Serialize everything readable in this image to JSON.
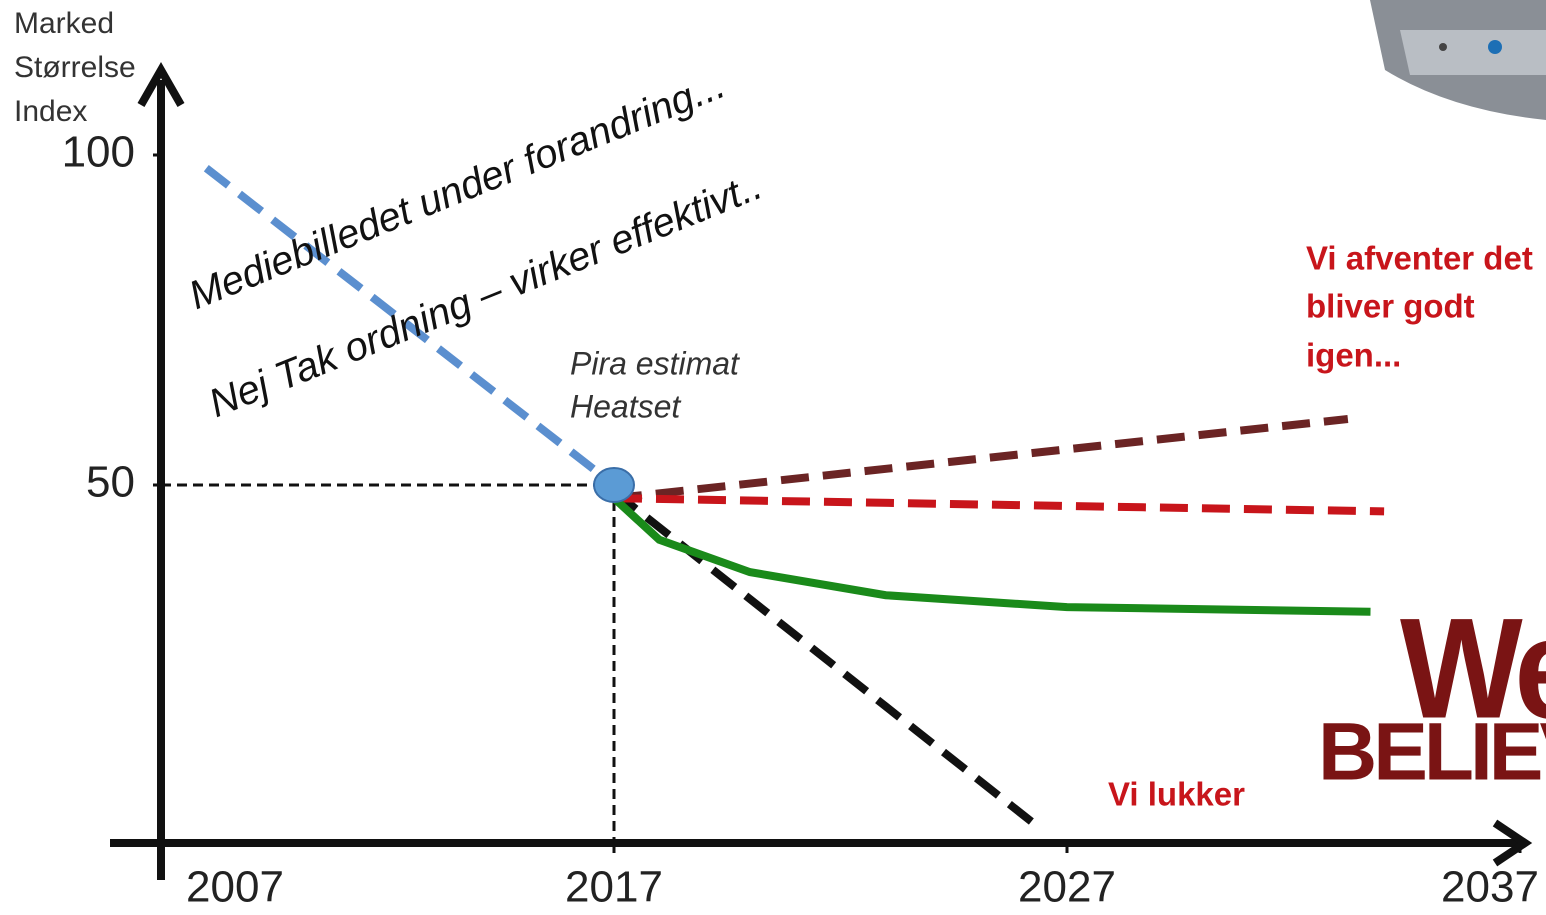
{
  "chart_data": {
    "type": "line",
    "ylabel": [
      "Marked",
      "Størrelse",
      "Index"
    ],
    "xlim": [
      2007,
      2037
    ],
    "xticks": [
      2007,
      2017,
      2027,
      2037
    ],
    "ylim": [
      -4,
      110
    ],
    "yticks": [
      50,
      100
    ],
    "series": [
      {
        "color": "#5b8fcf",
        "dash": true,
        "x": [
          2008,
          2017
        ],
        "values": [
          98,
          50
        ]
      },
      {
        "color": "#111111",
        "dash": true,
        "x": [
          2017,
          2026.4
        ],
        "values": [
          49,
          -2
        ]
      },
      {
        "color": "#6b2424",
        "dash": true,
        "x": [
          2017,
          2033.2
        ],
        "values": [
          48,
          60
        ]
      },
      {
        "color": "#c8151b",
        "dash": true,
        "x": [
          2017,
          2034
        ],
        "values": [
          48,
          46
        ]
      },
      {
        "color": "#1a8a1a",
        "dash": false,
        "x": [
          2017,
          2018,
          2020,
          2023,
          2027,
          2033.7
        ],
        "values": [
          48,
          41.7,
          36.8,
          33.3,
          31.5,
          30.8
        ]
      }
    ],
    "marker": {
      "x": 2017,
      "value": 50,
      "color": "#5b9bd5"
    },
    "annotations": [
      {
        "text": "Mediebilledet under forandring...",
        "color": "#111111"
      },
      {
        "text": "Nej Tak ordning – virker effektivt..",
        "color": "#111111"
      },
      {
        "text": "Pira estimat",
        "color": "#333333"
      },
      {
        "text": "Heatset",
        "color": "#333333"
      },
      {
        "text": "Vi afventer det",
        "color": "#c8151b"
      },
      {
        "text": "bliver godt",
        "color": "#c8151b"
      },
      {
        "text": "igen...",
        "color": "#c8151b"
      },
      {
        "text": "Vi lukker",
        "color": "#c8151b"
      }
    ],
    "logo": [
      "We",
      "BELIEVE"
    ]
  }
}
